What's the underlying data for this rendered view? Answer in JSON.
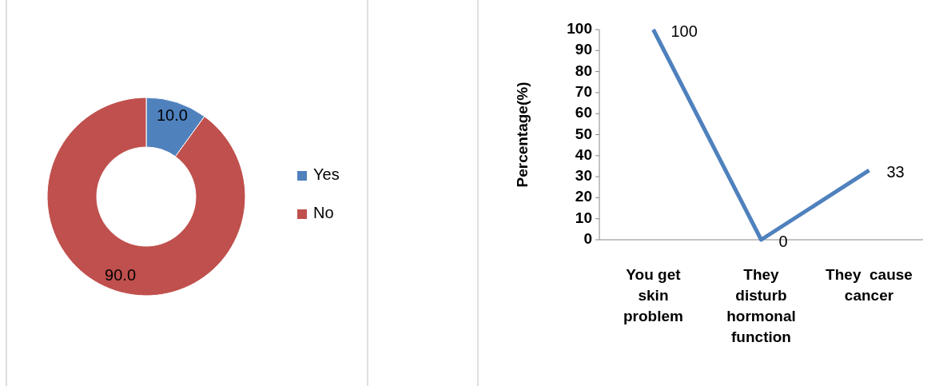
{
  "chart_data": [
    {
      "type": "donut",
      "categories": [
        "Yes",
        "No"
      ],
      "values": [
        10,
        90
      ],
      "colors": [
        "#4f81bd",
        "#c0504d"
      ],
      "value_labels": [
        "10.0",
        "90.0"
      ],
      "legend": "right"
    },
    {
      "type": "line",
      "categories": [
        "You get skin problem",
        "They disturb hormonal function",
        "They  cause cancer"
      ],
      "series": [
        {
          "color": "#4f81bd",
          "values": [
            100,
            0,
            33
          ]
        }
      ],
      "ylabel": "Percentage(%)",
      "ylim": [
        0,
        100
      ],
      "yticks": [
        0,
        10,
        20,
        30,
        40,
        50,
        60,
        70,
        80,
        90,
        100
      ],
      "data_labels": true,
      "grid": false,
      "marker": "none"
    }
  ]
}
